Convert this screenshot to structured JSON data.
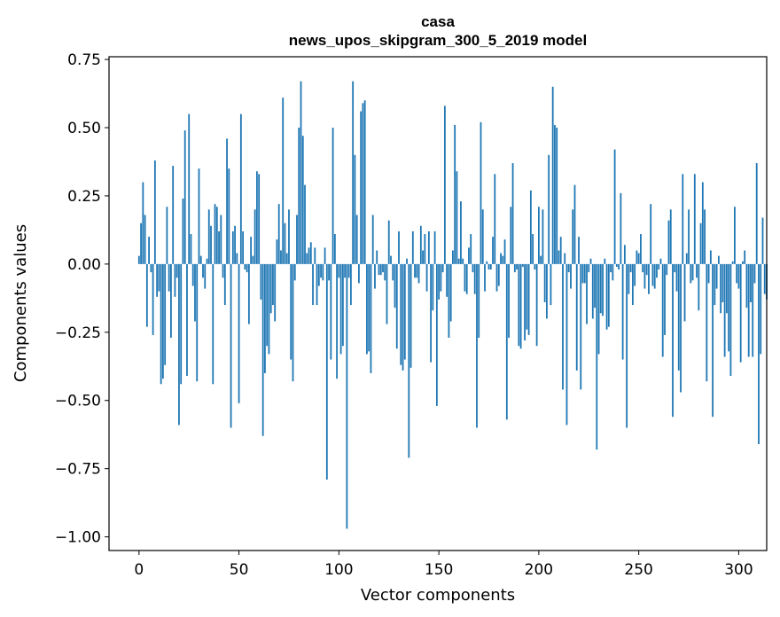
{
  "chart_data": {
    "type": "bar",
    "title": "casa",
    "subtitle": "news_upos_skipgram_300_5_2019 model",
    "xlabel": "Vector components",
    "ylabel": "Components values",
    "xlim": [
      -15,
      314
    ],
    "ylim": [
      -1.05,
      0.76
    ],
    "xticks": [
      0,
      50,
      100,
      150,
      200,
      250,
      300
    ],
    "xtick_labels": [
      "0",
      "50",
      "100",
      "150",
      "200",
      "250",
      "300"
    ],
    "yticks": [
      0.75,
      0.5,
      0.25,
      0.0,
      -0.25,
      -0.5,
      -0.75,
      -1.0
    ],
    "ytick_labels": [
      "0.75",
      "0.50",
      "0.25",
      "0.00",
      "−0.25",
      "−0.50",
      "−0.75",
      "−1.00"
    ],
    "bar_color": "#1f77b4",
    "grid": false,
    "legend": "none",
    "x_start": 0,
    "values": [
      0.03,
      0.15,
      0.3,
      0.18,
      -0.23,
      0.1,
      -0.03,
      -0.26,
      0.38,
      -0.12,
      -0.1,
      -0.44,
      -0.42,
      -0.37,
      0.21,
      -0.1,
      -0.27,
      0.36,
      -0.12,
      -0.05,
      -0.59,
      -0.44,
      0.24,
      0.49,
      -0.41,
      0.55,
      0.11,
      -0.08,
      -0.21,
      -0.43,
      0.35,
      0.03,
      -0.05,
      -0.09,
      0.02,
      0.2,
      0.14,
      -0.44,
      0.22,
      0.21,
      0.12,
      0.18,
      -0.05,
      -0.15,
      0.46,
      0.35,
      -0.6,
      0.12,
      0.14,
      0.04,
      -0.51,
      0.55,
      0.12,
      -0.02,
      -0.03,
      -0.22,
      0.1,
      0.03,
      0.2,
      0.34,
      0.33,
      -0.13,
      -0.63,
      -0.4,
      -0.3,
      -0.33,
      -0.18,
      -0.15,
      -0.21,
      0.09,
      0.22,
      0.05,
      0.61,
      0.15,
      0.04,
      0.2,
      -0.35,
      -0.43,
      -0.06,
      0.18,
      0.5,
      0.67,
      0.47,
      0.29,
      0.04,
      0.06,
      0.08,
      -0.15,
      0.06,
      -0.15,
      -0.08,
      -0.05,
      -0.06,
      0.06,
      -0.79,
      -0.06,
      -0.35,
      0.5,
      0.11,
      -0.42,
      -0.05,
      -0.33,
      -0.3,
      -0.05,
      -0.97,
      -0.05,
      -0.15,
      0.67,
      0.4,
      0.18,
      -0.07,
      0.56,
      0.59,
      0.6,
      -0.33,
      -0.32,
      -0.4,
      0.18,
      -0.09,
      0.05,
      -0.04,
      -0.04,
      -0.03,
      -0.06,
      -0.22,
      0.16,
      0.03,
      -0.06,
      -0.16,
      -0.31,
      0.12,
      -0.37,
      -0.39,
      -0.35,
      0.02,
      -0.71,
      -0.38,
      0.12,
      -0.05,
      -0.05,
      -0.07,
      0.14,
      0.05,
      0.11,
      -0.1,
      0.12,
      -0.36,
      -0.17,
      0.12,
      -0.52,
      -0.13,
      -0.1,
      -0.03,
      0.58,
      -0.12,
      -0.27,
      -0.21,
      0.05,
      0.51,
      0.34,
      0.02,
      0.23,
      0.02,
      -0.1,
      -0.11,
      0.06,
      0.11,
      -0.03,
      -0.11,
      -0.6,
      -0.27,
      0.52,
      0.2,
      -0.1,
      0.01,
      -0.02,
      -0.02,
      0.1,
      0.33,
      -0.1,
      -0.08,
      0.04,
      0.03,
      0.09,
      -0.57,
      -0.27,
      0.21,
      0.37,
      -0.03,
      -0.02,
      -0.3,
      -0.31,
      -0.01,
      -0.28,
      -0.24,
      -0.26,
      0.27,
      0.11,
      -0.02,
      -0.3,
      0.21,
      0.03,
      0.2,
      -0.14,
      -0.2,
      0.4,
      -0.15,
      0.65,
      0.51,
      0.5,
      0.05,
      0.1,
      -0.46,
      0.04,
      -0.59,
      -0.03,
      -0.09,
      0.2,
      0.29,
      -0.39,
      0.1,
      -0.46,
      -0.07,
      -0.07,
      -0.22,
      -0.03,
      0.02,
      -0.2,
      -0.16,
      -0.68,
      -0.33,
      -0.18,
      -0.19,
      0.02,
      -0.24,
      -0.23,
      -0.03,
      -0.06,
      0.42,
      -0.01,
      -0.02,
      0.26,
      -0.35,
      0.07,
      -0.6,
      -0.11,
      -0.03,
      -0.15,
      -0.08,
      0.05,
      0.04,
      0.11,
      -0.03,
      -0.09,
      -0.04,
      -0.11,
      0.22,
      -0.08,
      -0.09,
      -0.05,
      -0.02,
      0.02,
      -0.34,
      -0.26,
      -0.04,
      0.16,
      0.2,
      -0.56,
      -0.03,
      -0.1,
      -0.39,
      -0.47,
      0.33,
      -0.21,
      0.04,
      0.2,
      -0.07,
      -0.06,
      0.33,
      -0.05,
      -0.17,
      0.15,
      0.3,
      0.2,
      -0.43,
      -0.07,
      0.05,
      -0.56,
      -0.15,
      -0.09,
      0.03,
      -0.18,
      -0.14,
      -0.34,
      -0.18,
      -0.32,
      -0.41,
      0.01,
      0.21,
      -0.07,
      -0.09,
      -0.36,
      0.01,
      0.05,
      -0.16,
      -0.34,
      -0.14,
      -0.34,
      -0.07,
      0.37,
      -0.66,
      -0.33,
      0.17,
      -0.11,
      -0.13
    ]
  }
}
